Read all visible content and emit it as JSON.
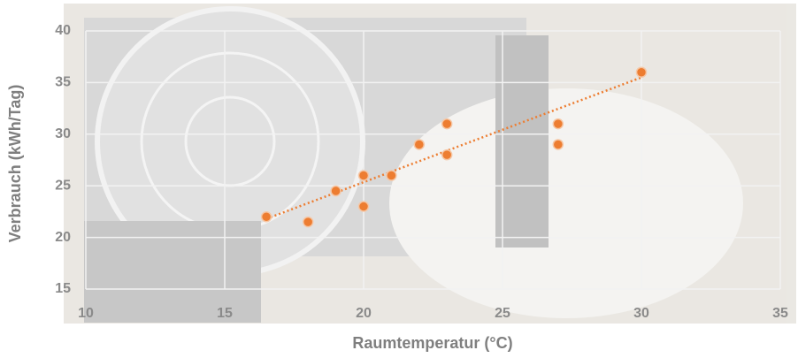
{
  "chart_data": {
    "type": "scatter",
    "x": [
      16.5,
      18,
      19,
      20,
      20,
      21,
      22,
      23,
      23,
      27,
      27,
      30
    ],
    "y": [
      22,
      21.5,
      24.5,
      26,
      23,
      26,
      29,
      31,
      28,
      31,
      29,
      36
    ],
    "color": "#ed7d31",
    "trendline": {
      "x": [
        16.5,
        30
      ],
      "y": [
        21.8,
        35.5
      ]
    },
    "xlim": [
      10,
      35
    ],
    "xticks": [
      10,
      15,
      20,
      25,
      30,
      35
    ],
    "ylim": [
      15,
      40
    ],
    "yticks": [
      15,
      20,
      25,
      30,
      35,
      40
    ],
    "grid": true,
    "xlabel": "Raumtemperatur (°C)",
    "ylabel": "Verbrauch (kWh/Tag)"
  }
}
